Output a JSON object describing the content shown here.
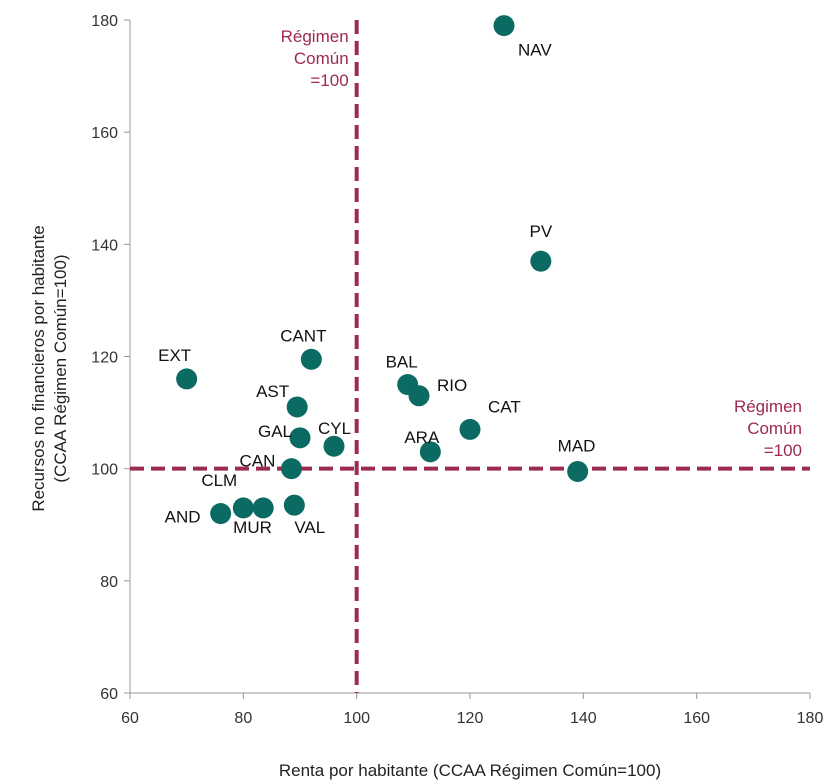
{
  "chart_data": {
    "type": "scatter",
    "xlabel": "Renta por habitante (CCAA Régimen Común=100)",
    "ylabel_lines": [
      "Recursos no financieros por habitante",
      "(CCAA Régimen Común=100)"
    ],
    "xlim": [
      60,
      180
    ],
    "ylim": [
      60,
      180
    ],
    "xticks": [
      60,
      80,
      100,
      120,
      140,
      160,
      180
    ],
    "yticks": [
      60,
      80,
      100,
      120,
      140,
      160,
      180
    ],
    "grid": false,
    "colors": {
      "point": "#0b6b63",
      "reference": "#9e2a4f",
      "axis": "#999999"
    },
    "reference_lines": {
      "vertical": {
        "x": 100,
        "label_lines": [
          "Régimen",
          "Común",
          "=100"
        ]
      },
      "horizontal": {
        "y": 100,
        "label_lines": [
          "Régimen",
          "Común",
          "=100"
        ]
      }
    },
    "points": [
      {
        "label": "NAV",
        "x": 126,
        "y": 179
      },
      {
        "label": "PV",
        "x": 132.5,
        "y": 137
      },
      {
        "label": "EXT",
        "x": 70,
        "y": 116
      },
      {
        "label": "CANT",
        "x": 92,
        "y": 119.5
      },
      {
        "label": "BAL",
        "x": 109,
        "y": 115
      },
      {
        "label": "RIO",
        "x": 111,
        "y": 113
      },
      {
        "label": "AST",
        "x": 89.5,
        "y": 111
      },
      {
        "label": "CAT",
        "x": 120,
        "y": 107
      },
      {
        "label": "GAL",
        "x": 90,
        "y": 105.5
      },
      {
        "label": "CYL",
        "x": 96,
        "y": 104
      },
      {
        "label": "ARA",
        "x": 113,
        "y": 103
      },
      {
        "label": "CAN",
        "x": 88.5,
        "y": 100
      },
      {
        "label": "MAD",
        "x": 139,
        "y": 99.5
      },
      {
        "label": "CLM",
        "x": 80,
        "y": 93
      },
      {
        "label": "MUR",
        "x": 83.5,
        "y": 93
      },
      {
        "label": "VAL",
        "x": 89,
        "y": 93.5
      },
      {
        "label": "AND",
        "x": 76,
        "y": 92
      }
    ]
  }
}
